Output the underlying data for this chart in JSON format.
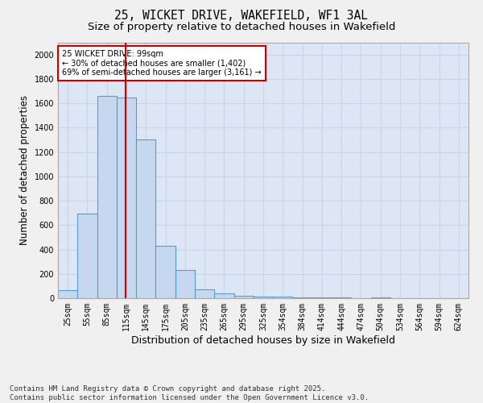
{
  "title": "25, WICKET DRIVE, WAKEFIELD, WF1 3AL",
  "subtitle": "Size of property relative to detached houses in Wakefield",
  "xlabel": "Distribution of detached houses by size in Wakefield",
  "ylabel": "Number of detached properties",
  "categories": [
    "25sqm",
    "55sqm",
    "85sqm",
    "115sqm",
    "145sqm",
    "175sqm",
    "205sqm",
    "235sqm",
    "265sqm",
    "295sqm",
    "325sqm",
    "354sqm",
    "384sqm",
    "414sqm",
    "444sqm",
    "474sqm",
    "504sqm",
    "534sqm",
    "564sqm",
    "594sqm",
    "624sqm"
  ],
  "values": [
    65,
    695,
    1660,
    1650,
    1300,
    430,
    230,
    75,
    40,
    20,
    15,
    10,
    5,
    5,
    5,
    0,
    5,
    0,
    0,
    0,
    0
  ],
  "bar_color": "#c5d8ef",
  "bar_edge_color": "#5b9bd5",
  "red_line_x": 2.97,
  "annotation_text": "25 WICKET DRIVE: 99sqm\n← 30% of detached houses are smaller (1,402)\n69% of semi-detached houses are larger (3,161) →",
  "annotation_box_color": "#ffffff",
  "annotation_box_edge": "#cc0000",
  "annotation_text_color": "#000000",
  "red_line_color": "#cc0000",
  "ylim": [
    0,
    2100
  ],
  "yticks": [
    0,
    200,
    400,
    600,
    800,
    1000,
    1200,
    1400,
    1600,
    1800,
    2000
  ],
  "grid_color": "#c8d4e8",
  "plot_bg_color": "#dce6f4",
  "fig_bg_color": "#f0f0f0",
  "footer": "Contains HM Land Registry data © Crown copyright and database right 2025.\nContains public sector information licensed under the Open Government Licence v3.0.",
  "title_fontsize": 10.5,
  "subtitle_fontsize": 9.5,
  "xlabel_fontsize": 9,
  "ylabel_fontsize": 8.5,
  "tick_fontsize": 7,
  "annot_fontsize": 7,
  "footer_fontsize": 6.5
}
